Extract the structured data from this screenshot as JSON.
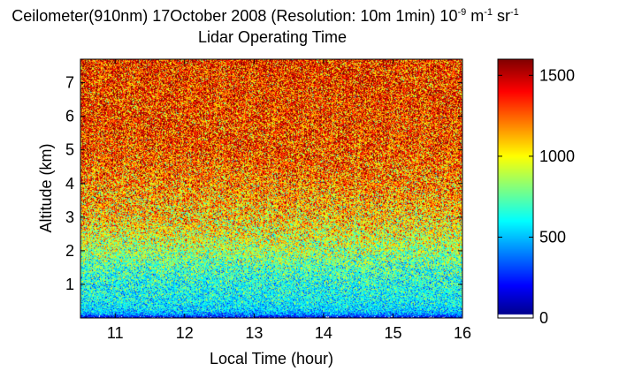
{
  "title": {
    "line1_main": "Ceilometer(910nm) 17October 2008 (Resolution: 10m 1min) 10",
    "exp1": "-9",
    "unit_m": " m",
    "exp2": "-1",
    "unit_sr": " sr",
    "exp3": "-1",
    "line2": "Lidar Operating Time"
  },
  "chart_data": {
    "type": "heatmap",
    "xlabel": "Local Time (hour)",
    "ylabel": "Altitude (km)",
    "xlim": [
      10.5,
      16
    ],
    "ylim": [
      0,
      7.7
    ],
    "xticks": [
      11,
      12,
      13,
      14,
      15,
      16
    ],
    "yticks": [
      1,
      2,
      3,
      4,
      5,
      6,
      7
    ],
    "colorbar": {
      "colormap": "jet",
      "range": [
        0,
        1600
      ],
      "ticks": [
        0,
        500,
        1000,
        1500
      ],
      "below_range_color": "#ffffff"
    },
    "profile": {
      "altitude_km": [
        0.0,
        0.1,
        0.2,
        0.3,
        0.5,
        0.7,
        1.0,
        1.5,
        2.0,
        2.5,
        3.0,
        4.0,
        5.0,
        7.7
      ],
      "mean_signal": [
        120,
        420,
        520,
        560,
        600,
        620,
        640,
        720,
        860,
        980,
        1080,
        1200,
        1300,
        1350
      ]
    }
  },
  "colors": {
    "axis": "#000000",
    "background": "#ffffff"
  }
}
